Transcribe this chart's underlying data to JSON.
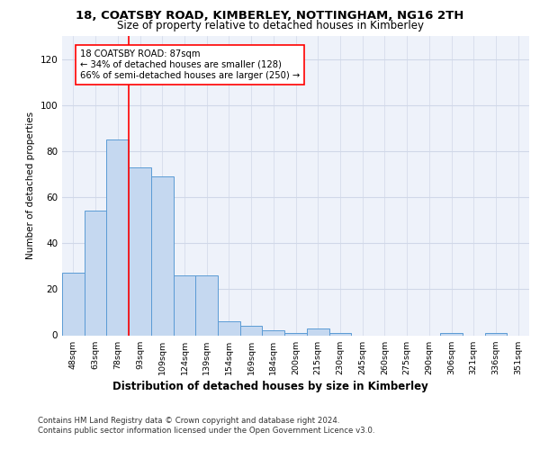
{
  "title1": "18, COATSBY ROAD, KIMBERLEY, NOTTINGHAM, NG16 2TH",
  "title2": "Size of property relative to detached houses in Kimberley",
  "xlabel": "Distribution of detached houses by size in Kimberley",
  "ylabel": "Number of detached properties",
  "categories": [
    "48sqm",
    "63sqm",
    "78sqm",
    "93sqm",
    "109sqm",
    "124sqm",
    "139sqm",
    "154sqm",
    "169sqm",
    "184sqm",
    "200sqm",
    "215sqm",
    "230sqm",
    "245sqm",
    "260sqm",
    "275sqm",
    "290sqm",
    "306sqm",
    "321sqm",
    "336sqm",
    "351sqm"
  ],
  "values": [
    27,
    54,
    85,
    73,
    69,
    26,
    26,
    6,
    4,
    2,
    1,
    3,
    1,
    0,
    0,
    0,
    0,
    1,
    0,
    1,
    0
  ],
  "bar_color": "#c5d8f0",
  "bar_edge_color": "#5b9bd5",
  "red_line_x": 2.5,
  "annotation_text": "18 COATSBY ROAD: 87sqm\n← 34% of detached houses are smaller (128)\n66% of semi-detached houses are larger (250) →",
  "ylim": [
    0,
    130
  ],
  "yticks": [
    0,
    20,
    40,
    60,
    80,
    100,
    120
  ],
  "grid_color": "#d0d8e8",
  "footer1": "Contains HM Land Registry data © Crown copyright and database right 2024.",
  "footer2": "Contains public sector information licensed under the Open Government Licence v3.0.",
  "bg_color": "#eef2fa"
}
